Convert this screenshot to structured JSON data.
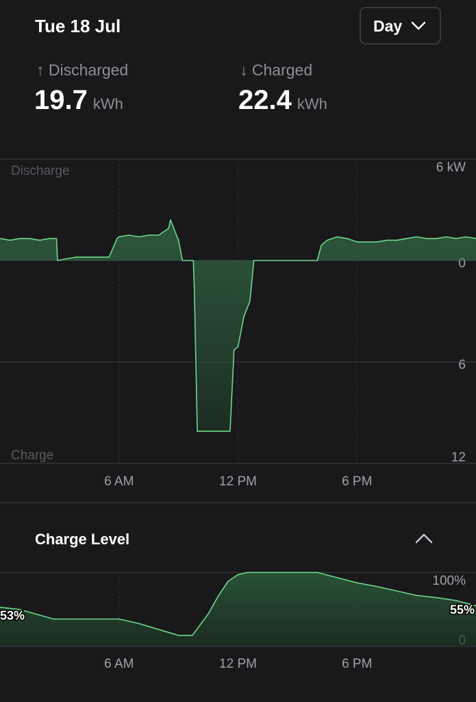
{
  "header": {
    "date": "Tue 18 Jul",
    "range": "Day"
  },
  "summary": {
    "discharged": {
      "label": "↑ Discharged",
      "value": 19.7,
      "unit": "kWh"
    },
    "charged": {
      "label": "↓ Charged",
      "value": 22.4,
      "unit": "kWh"
    }
  },
  "power_chart": {
    "type": "area",
    "top_label": "Discharge",
    "bottom_label": "Charge",
    "x": [
      0,
      0.5,
      1,
      1.5,
      2,
      2.5,
      2.85,
      2.9,
      3.8,
      4.5,
      5.5,
      5.9,
      6,
      6.5,
      7,
      7.5,
      8,
      8.5,
      8.6,
      9,
      9.2,
      9.75,
      9.8,
      9.95,
      10.5,
      11,
      11.6,
      11.8,
      12,
      12.3,
      12.6,
      12.8,
      16,
      16.2,
      16.5,
      17,
      17.5,
      18,
      18.5,
      19,
      19.5,
      20,
      20.5,
      21,
      21.5,
      22,
      22.5,
      23,
      23.5,
      24
    ],
    "values": [
      1.3,
      1.2,
      1.3,
      1.3,
      1.2,
      1.3,
      1.3,
      0,
      0.2,
      0.2,
      0.2,
      1.3,
      1.4,
      1.5,
      1.4,
      1.5,
      1.5,
      1.9,
      2.4,
      1.2,
      0,
      0,
      -1.8,
      -10.1,
      -10.1,
      -10.1,
      -10.1,
      -5.3,
      -5.1,
      -3.3,
      -2.4,
      0,
      0,
      0.9,
      1.2,
      1.4,
      1.3,
      1.1,
      1.1,
      1.1,
      1.2,
      1.2,
      1.3,
      1.4,
      1.3,
      1.3,
      1.4,
      1.3,
      1.4,
      1.3
    ],
    "color": "#6fd88a",
    "xlim": [
      0,
      24
    ],
    "xticks": [
      {
        "value": 6,
        "label": "6 AM"
      },
      {
        "value": 12,
        "label": "12 PM"
      },
      {
        "value": 18,
        "label": "6 PM"
      }
    ],
    "ylim": [
      -12,
      6
    ],
    "yticks": [
      {
        "value": 6,
        "label": "6 kW"
      },
      0,
      {
        "value": -6,
        "label": "6"
      },
      {
        "value": -12,
        "label": "12"
      }
    ],
    "grid": true
  },
  "charge_chart": {
    "type": "area",
    "title": "Charge Level",
    "x": [
      0,
      1,
      2.7,
      6,
      7,
      8,
      9,
      9.7,
      10.5,
      11,
      11.5,
      12,
      12.5,
      16,
      17,
      18,
      19,
      20,
      21,
      22,
      23,
      24
    ],
    "values": [
      53,
      50,
      37,
      37,
      31,
      23,
      15,
      15,
      44,
      68,
      88,
      97,
      100,
      100,
      93,
      86,
      81,
      75,
      69,
      66,
      62,
      55
    ],
    "value_labels": [
      "53%",
      null,
      null,
      null,
      null,
      null,
      null,
      null,
      null,
      null,
      null,
      null,
      null,
      null,
      null,
      null,
      null,
      null,
      null,
      null,
      null,
      "55%"
    ],
    "color": "#6fd88a",
    "xlim": [
      0,
      24
    ],
    "xticks": [
      {
        "value": 6,
        "label": "6 AM"
      },
      {
        "value": 12,
        "label": "12 PM"
      },
      {
        "value": 18,
        "label": "6 PM"
      }
    ],
    "ylim": [
      0,
      100
    ],
    "yticks": [
      {
        "value": 100,
        "label": "100%"
      },
      0
    ],
    "grid": true
  }
}
